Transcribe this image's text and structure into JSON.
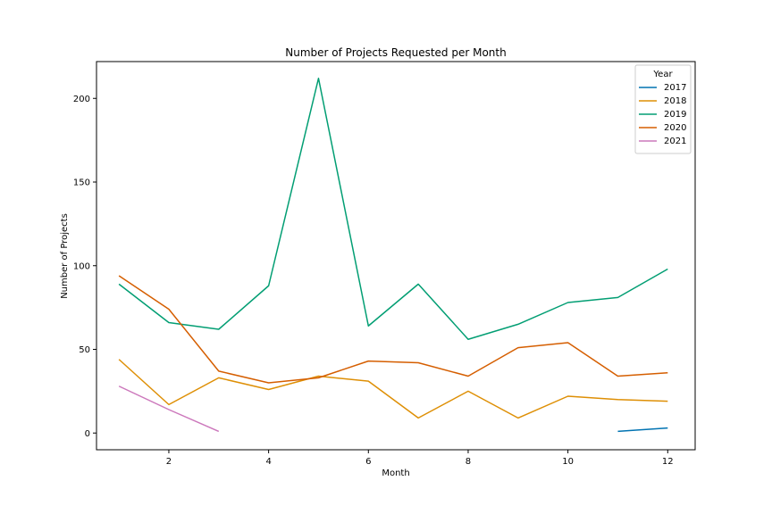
{
  "chart_data": {
    "type": "line",
    "title": "Number of Projects Requested per Month",
    "xlabel": "Month",
    "ylabel": "Number of Projects",
    "xlim": [
      0.55,
      12.55
    ],
    "ylim": [
      -10,
      222
    ],
    "xticks": [
      2,
      4,
      6,
      8,
      10,
      12
    ],
    "yticks": [
      0,
      50,
      100,
      150,
      200
    ],
    "grid": false,
    "legend": {
      "title": "Year",
      "placement": "top-right"
    },
    "series": [
      {
        "name": "2017",
        "color": "#0173b2",
        "x": [
          11,
          12
        ],
        "values": [
          1,
          3
        ]
      },
      {
        "name": "2018",
        "color": "#de8f05",
        "x": [
          1,
          2,
          3,
          4,
          5,
          6,
          7,
          8,
          9,
          10,
          11,
          12
        ],
        "values": [
          44,
          17,
          33,
          26,
          34,
          31,
          9,
          25,
          9,
          22,
          20,
          19
        ]
      },
      {
        "name": "2019",
        "color": "#029e73",
        "x": [
          1,
          2,
          3,
          4,
          5,
          6,
          7,
          8,
          9,
          10,
          11,
          12
        ],
        "values": [
          89,
          66,
          62,
          88,
          212,
          64,
          89,
          56,
          65,
          78,
          81,
          98
        ]
      },
      {
        "name": "2020",
        "color": "#d55e00",
        "x": [
          1,
          2,
          3,
          4,
          5,
          6,
          7,
          8,
          9,
          10,
          11,
          12
        ],
        "values": [
          94,
          74,
          37,
          30,
          33,
          43,
          42,
          34,
          51,
          54,
          34,
          36
        ]
      },
      {
        "name": "2021",
        "color": "#cc78bc",
        "x": [
          1,
          2,
          3
        ],
        "values": [
          28,
          14,
          1
        ]
      }
    ]
  }
}
